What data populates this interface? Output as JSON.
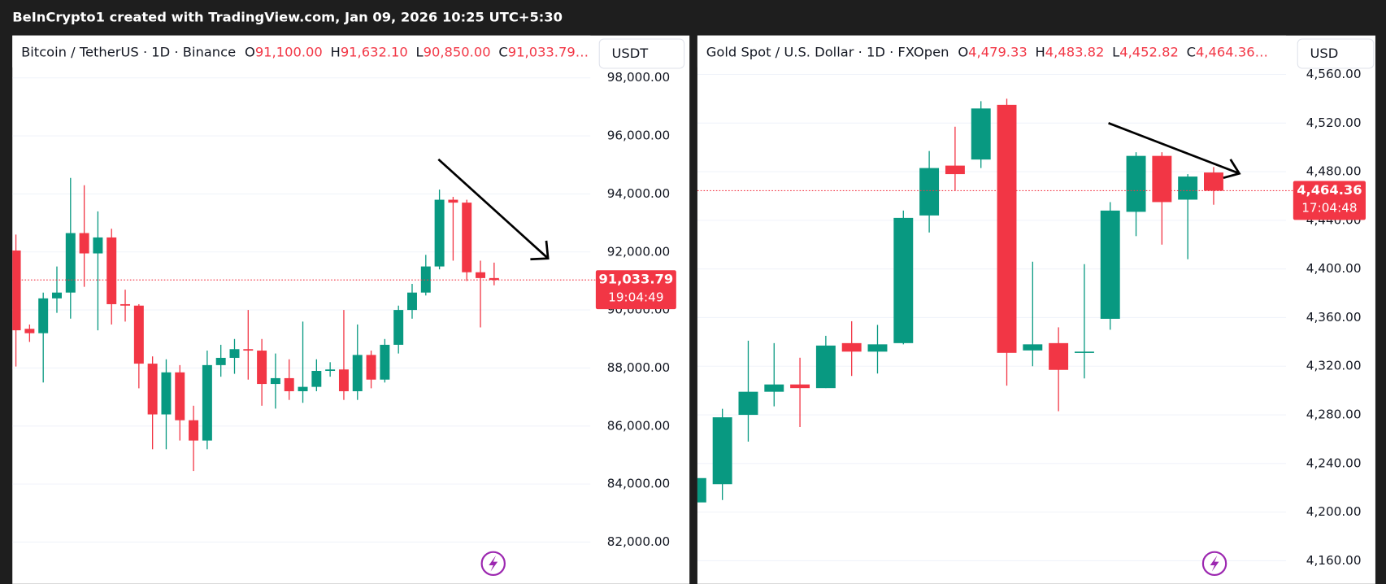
{
  "banner": "BeInCrypto1 created with TradingView.com, Jan 09, 2026 10:25 UTC+5:30",
  "chart_data": [
    {
      "type": "candlestick",
      "title": "Bitcoin / TetherUS · 1D · Binance",
      "legend": [
        {
          "key": "O",
          "text": "91,100.00"
        },
        {
          "key": "H",
          "text": "91,632.10"
        },
        {
          "key": "L",
          "text": "90,850.00"
        },
        {
          "key": "C",
          "text": "91,033.79…"
        }
      ],
      "currency": "USDT",
      "last_price_label": "91,033.79",
      "countdown": "19:04:49",
      "up_color": "#089981",
      "down_color": "#f23645",
      "ylim": [
        80560,
        99460
      ],
      "yticks": [
        {
          "value": 82000,
          "label": "82,000.00"
        },
        {
          "value": 84000,
          "label": "84,000.00"
        },
        {
          "value": 86000,
          "label": "86,000.00"
        },
        {
          "value": 88000,
          "label": "88,000.00"
        },
        {
          "value": 90000,
          "label": "90,000.00"
        },
        {
          "value": 92000,
          "label": "92,000.00"
        },
        {
          "value": 94000,
          "label": "94,000.00"
        },
        {
          "value": 96000,
          "label": "96,000.00"
        },
        {
          "value": 98000,
          "label": "98,000.00"
        }
      ],
      "open": [
        92050,
        89350,
        89200,
        90400,
        90600,
        92650,
        91950,
        92500,
        90200,
        90150,
        88150,
        86400,
        87850,
        86200,
        85500,
        88100,
        88350,
        88650,
        88600,
        87450,
        87650,
        87200,
        87350,
        87900,
        87950,
        87200,
        88450,
        87600,
        88800,
        90000,
        90600,
        91500,
        93800,
        93700,
        91300,
        91100
      ],
      "high": [
        92600,
        89500,
        90600,
        91500,
        94550,
        94300,
        93400,
        92800,
        90700,
        90200,
        88400,
        88300,
        88100,
        86700,
        88600,
        88800,
        89000,
        90000,
        89000,
        88500,
        88300,
        89600,
        88300,
        88200,
        90000,
        89500,
        88600,
        89000,
        90150,
        90900,
        91900,
        94150,
        93900,
        93800,
        91700,
        91632.1
      ],
      "low": [
        88050,
        88900,
        87500,
        89900,
        89700,
        90800,
        89300,
        89500,
        89600,
        87300,
        85200,
        85200,
        85500,
        84450,
        85200,
        87700,
        87800,
        87600,
        86700,
        86600,
        86900,
        86800,
        87200,
        87700,
        86900,
        86900,
        87300,
        87500,
        88500,
        89700,
        90500,
        91400,
        91700,
        91000,
        89400,
        90850
      ],
      "close": [
        89300,
        89200,
        90400,
        90600,
        92650,
        91950,
        92500,
        90200,
        90150,
        88150,
        86400,
        87850,
        86200,
        85500,
        88100,
        88350,
        88650,
        88600,
        87450,
        87650,
        87200,
        87350,
        87900,
        87950,
        87200,
        88450,
        87600,
        88800,
        90000,
        90600,
        91500,
        93800,
        93700,
        91300,
        91100,
        91033.79
      ]
    },
    {
      "type": "candlestick",
      "title": "Gold Spot / U.S. Dollar · 1D · FXOpen",
      "legend": [
        {
          "key": "O",
          "text": "4,479.33"
        },
        {
          "key": "H",
          "text": "4,483.82"
        },
        {
          "key": "L",
          "text": "4,452.82"
        },
        {
          "key": "C",
          "text": "4,464.36…"
        }
      ],
      "currency": "USD",
      "last_price_label": "4,464.36",
      "countdown": "17:04:48",
      "up_color": "#089981",
      "down_color": "#f23645",
      "ylim": [
        4141,
        4592
      ],
      "yticks": [
        {
          "value": 4160,
          "label": "4,160.00"
        },
        {
          "value": 4200,
          "label": "4,200.00"
        },
        {
          "value": 4240,
          "label": "4,240.00"
        },
        {
          "value": 4280,
          "label": "4,280.00"
        },
        {
          "value": 4320,
          "label": "4,320.00"
        },
        {
          "value": 4360,
          "label": "4,360.00"
        },
        {
          "value": 4400,
          "label": "4,400.00"
        },
        {
          "value": 4440,
          "label": "4,440.00"
        },
        {
          "value": 4480,
          "label": "4,480.00"
        },
        {
          "value": 4520,
          "label": "4,520.00"
        },
        {
          "value": 4560,
          "label": "4,560.00"
        }
      ],
      "open": [
        4208,
        4223,
        4280,
        4299,
        4305,
        4302,
        4339,
        4332,
        4339,
        4444,
        4485,
        4490,
        4535,
        4333,
        4339,
        4331,
        4359,
        4447,
        4493,
        4457,
        4479.33
      ],
      "high": [
        4230,
        4285,
        4341,
        4339,
        4327,
        4345,
        4357,
        4354,
        4448,
        4497,
        4517,
        4538,
        4540,
        4406,
        4352,
        4404,
        4455,
        4496,
        4496,
        4478,
        4483.82
      ],
      "low": [
        4200,
        4210,
        4258,
        4287,
        4270,
        4302,
        4312,
        4314,
        4338,
        4430,
        4464,
        4483,
        4304,
        4320,
        4283,
        4310,
        4350,
        4427,
        4420,
        4408,
        4452.82
      ],
      "close": [
        4228,
        4278,
        4299,
        4305,
        4302,
        4337,
        4332,
        4338,
        4442,
        4483,
        4478,
        4532,
        4331,
        4338,
        4317,
        4332,
        4448,
        4493,
        4455,
        4476,
        4464.36
      ]
    }
  ]
}
